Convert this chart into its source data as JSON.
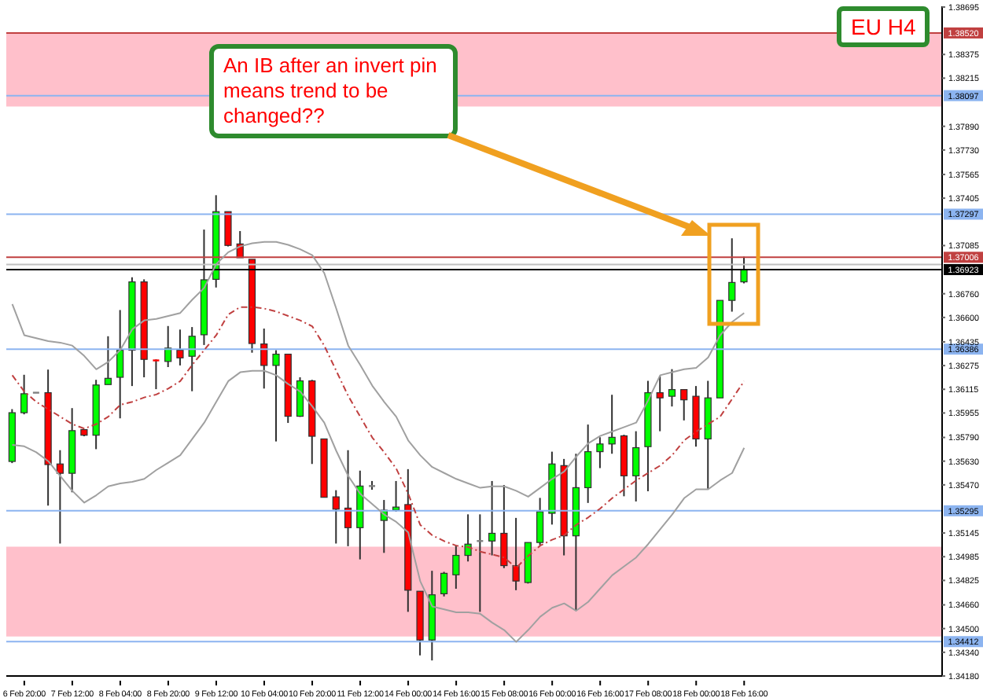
{
  "chart_data": {
    "type": "candlestick",
    "title": "EU H4",
    "annotations": [
      "An IB after an invert pin means trend to be changed??"
    ],
    "categories": [
      null,
      "6 Feb 20:00",
      null,
      null,
      null,
      "7 Feb 12:00",
      null,
      null,
      null,
      "8 Feb 04:00",
      null,
      null,
      null,
      "8 Feb 20:00",
      null,
      null,
      null,
      "9 Feb 12:00",
      null,
      null,
      null,
      "10 Feb 04:00",
      null,
      null,
      null,
      "10 Feb 20:00",
      null,
      null,
      null,
      "11 Feb 12:00",
      null,
      null,
      null,
      "14 Feb 00:00",
      null,
      null,
      null,
      "14 Feb 16:00",
      null,
      null,
      null,
      "15 Feb 08:00",
      null,
      null,
      null,
      "16 Feb 00:00",
      null,
      null,
      null,
      "16 Feb 16:00",
      null,
      null,
      null,
      "17 Feb 08:00",
      null,
      null,
      null,
      "18 Feb 00:00",
      null,
      null,
      null,
      "18 Feb 16:00",
      null,
      null,
      null,
      null,
      null,
      null,
      null,
      null,
      null,
      null,
      null,
      null,
      null,
      null,
      null,
      null
    ],
    "ohlc": [
      [
        1.35628,
        1.35981,
        1.35617,
        1.35957
      ],
      [
        1.35957,
        1.36213,
        1.35946,
        1.36085
      ],
      [
        1.36092,
        1.36092,
        1.36092,
        1.36092
      ],
      [
        1.36092,
        1.36248,
        1.3533,
        1.35607
      ],
      [
        1.35611,
        1.35704,
        1.35074,
        1.35548
      ],
      [
        1.35548,
        1.35988,
        1.3542,
        1.35836
      ],
      [
        1.35843,
        1.35843,
        1.35798,
        1.35805
      ],
      [
        1.35805,
        1.36179,
        1.35711,
        1.36144
      ],
      [
        1.36147,
        1.36473,
        1.36147,
        1.36189
      ],
      [
        1.36196,
        1.3665,
        1.35919,
        1.36379
      ],
      [
        1.36379,
        1.36871,
        1.36137,
        1.3684
      ],
      [
        1.3684,
        1.36857,
        1.36196,
        1.36317
      ],
      [
        1.3631,
        1.36317,
        1.36116,
        1.3631
      ],
      [
        1.36303,
        1.36542,
        1.36265,
        1.36393
      ],
      [
        1.36379,
        1.36518,
        1.36276,
        1.36327
      ],
      [
        1.36338,
        1.36535,
        1.36102,
        1.36473
      ],
      [
        1.36483,
        1.37193,
        1.36414,
        1.36854
      ],
      [
        1.36857,
        1.37425,
        1.36802,
        1.37314
      ],
      [
        1.37314,
        1.37314,
        1.37079,
        1.37086
      ],
      [
        1.37096,
        1.37183,
        1.37003,
        1.37003
      ],
      [
        1.36992,
        1.36992,
        1.36362,
        1.36424
      ],
      [
        1.36421,
        1.36525,
        1.3612,
        1.36276
      ],
      [
        1.36276,
        1.36379,
        1.35763,
        1.36352
      ],
      [
        1.36352,
        1.36352,
        1.35888,
        1.35933
      ],
      [
        1.35933,
        1.36196,
        1.35929,
        1.36172
      ],
      [
        1.36172,
        1.36179,
        1.35611,
        1.35798
      ],
      [
        1.3578,
        1.3578,
        1.35386,
        1.35386
      ],
      [
        1.35389,
        1.35434,
        1.35074,
        1.35306
      ],
      [
        1.35313,
        1.35704,
        1.35056,
        1.35181
      ],
      [
        1.35181,
        1.35566,
        1.34967,
        1.35462
      ],
      [
        1.35462,
        1.35496,
        1.35437,
        1.35462
      ],
      [
        1.3523,
        1.35368,
        1.35011,
        1.35299
      ],
      [
        1.35299,
        1.35496,
        1.35289,
        1.3532
      ],
      [
        1.35337,
        1.35576,
        1.34613,
        1.34759
      ],
      [
        1.34752,
        1.34752,
        1.34319,
        1.34423
      ],
      [
        1.34423,
        1.3489,
        1.34285,
        1.34728
      ],
      [
        1.34735,
        1.34883,
        1.34717,
        1.34873
      ],
      [
        1.34863,
        1.35063,
        1.34769,
        1.34994
      ],
      [
        1.34994,
        1.35271,
        1.34953,
        1.3507
      ],
      [
        1.35091,
        1.35271,
        1.34613,
        1.35091
      ],
      [
        1.35091,
        1.35496,
        1.34994,
        1.35143
      ],
      [
        1.35143,
        1.35469,
        1.34908,
        1.34925
      ],
      [
        1.34925,
        1.35247,
        1.34759,
        1.34821
      ],
      [
        1.34811,
        1.35081,
        1.34804,
        1.35081
      ],
      [
        1.35081,
        1.35382,
        1.35063,
        1.35289
      ],
      [
        1.35278,
        1.35694,
        1.35202,
        1.35611
      ],
      [
        1.356,
        1.35645,
        1.34994,
        1.35126
      ],
      [
        1.35126,
        1.3568,
        1.3462,
        1.35451
      ],
      [
        1.35451,
        1.35877,
        1.35348,
        1.35694
      ],
      [
        1.35694,
        1.35791,
        1.35583,
        1.35746
      ],
      [
        1.35746,
        1.36078,
        1.3568,
        1.35791
      ],
      [
        1.35801,
        1.35808,
        1.35393,
        1.35531
      ],
      [
        1.35531,
        1.35832,
        1.35358,
        1.35721
      ],
      [
        1.35728,
        1.36172,
        1.35427,
        1.36092
      ],
      [
        1.36092,
        1.36206,
        1.35832,
        1.36057
      ],
      [
        1.36068,
        1.36251,
        1.35999,
        1.36113
      ],
      [
        1.36113,
        1.36113,
        1.35905,
        1.36044
      ],
      [
        1.36068,
        1.36137,
        1.35728,
        1.3578
      ],
      [
        1.3578,
        1.36172,
        1.35444,
        1.36057
      ],
      [
        1.36057,
        1.36715,
        1.36057,
        1.36715
      ],
      [
        1.36715,
        1.37134,
        1.36639,
        1.36836
      ],
      [
        1.3684,
        1.3701,
        1.3683,
        1.36923
      ],
      null,
      null,
      null,
      null,
      null,
      null,
      null,
      null,
      null,
      null,
      null,
      null,
      null,
      null,
      null,
      null
    ],
    "colors": [
      "#00ff00",
      "#00ff00",
      "#808080",
      "#ff0000",
      "#ff0000",
      "#00ff00",
      "#ff0000",
      "#00ff00",
      "#00ff00",
      "#00ff00",
      "#00ff00",
      "#ff0000",
      "#ff0000",
      "#00ff00",
      "#ff0000",
      "#00ff00",
      "#00ff00",
      "#00ff00",
      "#ff0000",
      "#ff0000",
      "#ff0000",
      "#ff0000",
      "#00ff00",
      "#ff0000",
      "#00ff00",
      "#ff0000",
      "#ff0000",
      "#ff0000",
      "#ff0000",
      "#00ff00",
      "#808080",
      "#00ff00",
      "#00ff00",
      "#ff0000",
      "#ff0000",
      "#00ff00",
      "#00ff00",
      "#00ff00",
      "#00ff00",
      "#808080",
      "#00ff00",
      "#ff0000",
      "#ff0000",
      "#00ff00",
      "#00ff00",
      "#00ff00",
      "#ff0000",
      "#00ff00",
      "#00ff00",
      "#00ff00",
      "#00ff00",
      "#ff0000",
      "#00ff00",
      "#00ff00",
      "#ff0000",
      "#00ff00",
      "#ff0000",
      "#ff0000",
      "#00ff00",
      "#00ff00",
      "#00ff00",
      "#00ff00",
      null,
      null,
      null,
      null,
      null,
      null,
      null,
      null,
      null,
      null,
      null,
      null,
      null,
      null,
      null,
      null
    ],
    "series": [
      {
        "type": "line",
        "color": "#a0a0a0",
        "line_style": "solid",
        "values": [
          1.3669,
          1.3648,
          1.3646,
          1.3644,
          1.3643,
          1.3641,
          1.3634,
          1.3625,
          1.363,
          1.3638,
          1.3652,
          1.3658,
          1.3659,
          1.3661,
          1.3663,
          1.3672,
          1.368,
          1.3696,
          1.3704,
          1.3708,
          1.371,
          1.3711,
          1.3711,
          1.3709,
          1.3706,
          1.3702,
          1.369,
          1.3666,
          1.3641,
          1.3628,
          1.3614,
          1.3603,
          1.3593,
          1.3577,
          1.3567,
          1.3559,
          1.3555,
          1.3551,
          1.3548,
          1.3545,
          1.3546,
          1.3546,
          1.3543,
          1.3539,
          1.3545,
          1.3551,
          1.3556,
          1.3566,
          1.3575,
          1.358,
          1.3583,
          1.3586,
          1.3589,
          1.3604,
          1.3621,
          1.3623,
          1.3625,
          1.3626,
          1.3633,
          1.3648,
          1.3657,
          1.3663,
          null,
          null,
          null,
          null,
          null,
          null,
          null,
          null,
          null,
          null,
          null,
          null,
          null,
          null,
          null,
          null
        ]
      },
      {
        "type": "line",
        "color": "#c04040",
        "line_style": "dashed",
        "values": [
          1.3621,
          1.361,
          1.3603,
          1.3598,
          1.3593,
          1.3588,
          1.3585,
          1.3588,
          1.3593,
          1.3601,
          1.3603,
          1.3606,
          1.3608,
          1.3612,
          1.3617,
          1.3628,
          1.3638,
          1.3648,
          1.3662,
          1.3667,
          1.3667,
          1.3666,
          1.3664,
          1.3661,
          1.3658,
          1.3654,
          1.3641,
          1.3624,
          1.3607,
          1.3593,
          1.3579,
          1.3569,
          1.3558,
          1.3541,
          1.352,
          1.3513,
          1.3509,
          1.3506,
          1.3505,
          1.3502,
          1.35,
          1.3498,
          1.3491,
          1.3499,
          1.3506,
          1.351,
          1.3513,
          1.352,
          1.3525,
          1.3531,
          1.3538,
          1.3544,
          1.355,
          1.3555,
          1.356,
          1.3567,
          1.3577,
          1.3583,
          1.3588,
          1.3593,
          1.3605,
          1.3617,
          null,
          null,
          null,
          null,
          null,
          null,
          null,
          null,
          null,
          null,
          null,
          null,
          null,
          null,
          null,
          null
        ]
      },
      {
        "type": "line",
        "color": "#a0a0a0",
        "line_style": "solid",
        "values": [
          1.3574,
          1.3573,
          1.3569,
          1.3563,
          1.3553,
          1.3543,
          1.3535,
          1.354,
          1.3546,
          1.3548,
          1.3549,
          1.3551,
          1.3557,
          1.3562,
          1.3567,
          1.3578,
          1.3589,
          1.3603,
          1.3617,
          1.3623,
          1.3624,
          1.3624,
          1.3621,
          1.3615,
          1.361,
          1.36,
          1.3589,
          1.357,
          1.3553,
          1.3541,
          1.3534,
          1.3527,
          1.3522,
          1.3515,
          1.3482,
          1.3465,
          1.3463,
          1.3461,
          1.3461,
          1.346,
          1.3454,
          1.3449,
          1.3441,
          1.3449,
          1.3458,
          1.3464,
          1.3467,
          1.3462,
          1.3468,
          1.3477,
          1.3486,
          1.3492,
          1.3498,
          1.3507,
          1.3517,
          1.3527,
          1.3538,
          1.3544,
          1.3544,
          1.355,
          1.3555,
          1.3572,
          null,
          null,
          null,
          null,
          null,
          null,
          null,
          null,
          null,
          null,
          null,
          null,
          null,
          null,
          null,
          null
        ]
      }
    ],
    "ylim": [
      1.3418,
      1.387
    ],
    "yticks": [
      1.38695,
      1.38375,
      1.38215,
      {
        "value": 1.3789,
        "label": "1.37890"
      },
      {
        "value": 1.3773,
        "label": "1.37730"
      },
      1.37565,
      1.37405,
      1.37085,
      {
        "value": 1.3676,
        "label": "1.36760"
      },
      {
        "value": 1.366,
        "label": "1.36600"
      },
      1.36435,
      1.36275,
      1.36115,
      1.35955,
      {
        "value": 1.3579,
        "label": "1.35790"
      },
      {
        "value": 1.3563,
        "label": "1.35630"
      },
      {
        "value": 1.3547,
        "label": "1.35470"
      },
      1.35145,
      1.34985,
      1.34825,
      {
        "value": 1.3466,
        "label": "1.34660"
      },
      {
        "value": 1.345,
        "label": "1.34500"
      },
      {
        "value": 1.3434,
        "label": "1.34340"
      },
      {
        "value": 1.3418,
        "label": "1.34180"
      }
    ],
    "bands": [
      {
        "axis": "y",
        "from": 1.38024,
        "to": 1.3852,
        "color": "#ffc0cb"
      },
      {
        "axis": "y",
        "from": 1.34447,
        "to": 1.35053,
        "color": "#ffc0cb"
      }
    ],
    "ref_lines": [
      {
        "axis": "y",
        "value": 1.3852,
        "label": "1.38520",
        "color": "#c04040"
      },
      {
        "axis": "y",
        "value": 1.38097,
        "label": "1.38097",
        "color": "#8cb4f0"
      },
      {
        "axis": "y",
        "value": 1.37297,
        "label": "1.37297",
        "color": "#8cb4f0"
      },
      {
        "axis": "y",
        "value": 1.37006,
        "label": "1.37006",
        "color": "#c04040"
      },
      {
        "axis": "y",
        "value": 1.36957,
        "label": null,
        "color": "#c0c0c0"
      },
      {
        "axis": "y",
        "value": 1.36923,
        "label": "1.36923",
        "color": "#000000"
      },
      {
        "axis": "y",
        "value": 1.36386,
        "label": "1.36386",
        "color": "#8cb4f0"
      },
      {
        "axis": "y",
        "value": 1.35295,
        "label": "1.35295",
        "color": "#8cb4f0"
      },
      {
        "axis": "y",
        "value": 1.34412,
        "label": "1.34412",
        "color": "#8cb4f0"
      }
    ]
  }
}
